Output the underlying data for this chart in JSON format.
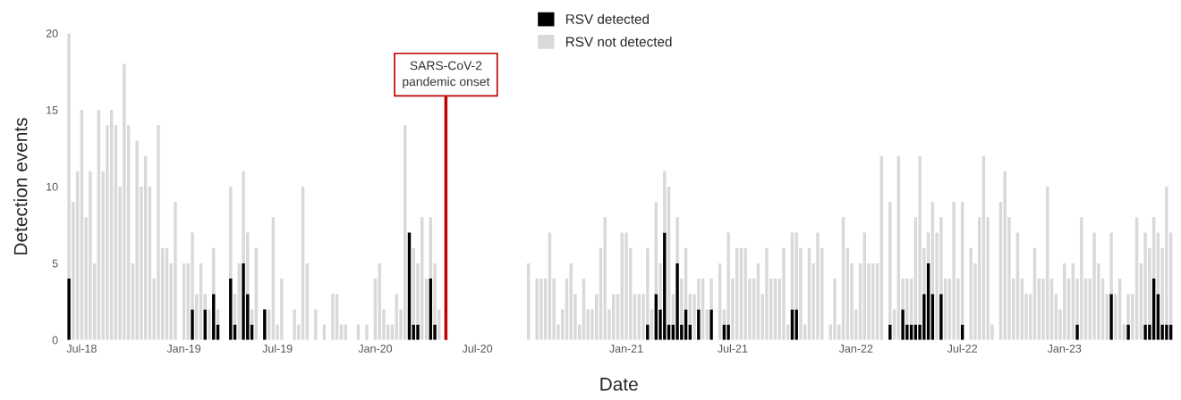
{
  "chart_data": {
    "type": "bar",
    "stacked": true,
    "xlabel": "Date",
    "ylabel": "Detection events",
    "ylim": [
      0,
      20
    ],
    "yticks": [
      0,
      5,
      10,
      15,
      20
    ],
    "grid": false,
    "legend": "top",
    "annotations": [
      "SARS-CoV-2\npandemic onset"
    ],
    "categories": [
      null,
      null,
      null,
      "Jul-18",
      null,
      null,
      null,
      null,
      null,
      null,
      null,
      null,
      null,
      null,
      null,
      null,
      null,
      null,
      null,
      null,
      null,
      null,
      null,
      null,
      null,
      null,
      null,
      "Jan-19",
      null,
      null,
      null,
      null,
      null,
      null,
      null,
      null,
      null,
      null,
      null,
      null,
      null,
      null,
      null,
      null,
      null,
      null,
      null,
      null,
      null,
      "Jul-19",
      null,
      null,
      null,
      null,
      null,
      null,
      null,
      null,
      null,
      null,
      null,
      null,
      null,
      null,
      null,
      null,
      null,
      null,
      null,
      null,
      null,
      null,
      "Jan-20",
      null,
      null,
      null,
      null,
      null,
      null,
      null,
      null,
      null,
      null,
      null,
      null,
      null,
      null,
      null,
      null,
      null,
      null,
      null,
      null,
      null,
      null,
      null,
      "Jul-20",
      null,
      null,
      null,
      null,
      null,
      null,
      null,
      null,
      null,
      null,
      null,
      null,
      null,
      null,
      null,
      null,
      null,
      null,
      null,
      null,
      null,
      null,
      null,
      null,
      null,
      null,
      null,
      null,
      null,
      null,
      null,
      null,
      null,
      null,
      "Jan-21",
      null,
      null,
      null,
      null,
      null,
      null,
      null,
      null,
      null,
      null,
      null,
      null,
      null,
      null,
      null,
      null,
      null,
      null,
      null,
      null,
      null,
      null,
      null,
      null,
      "Jul-21",
      null,
      null,
      null,
      null,
      null,
      null,
      null,
      null,
      null,
      null,
      null,
      null,
      null,
      null,
      null,
      null,
      null,
      null,
      null,
      null,
      null,
      null,
      null,
      null,
      null,
      null,
      null,
      null,
      "Jan-22",
      null,
      null,
      null,
      null,
      null,
      null,
      null,
      null,
      null,
      null,
      null,
      null,
      null,
      null,
      null,
      null,
      null,
      null,
      null,
      null,
      null,
      null,
      null,
      null,
      "Jul-22",
      null,
      null,
      null,
      null,
      null,
      null,
      null,
      null,
      null,
      null,
      null,
      null,
      null,
      null,
      null,
      null,
      null,
      null,
      null,
      null,
      null,
      null,
      null,
      "Jan-23",
      null,
      null,
      null,
      null,
      null,
      null,
      null,
      null,
      null,
      null,
      null,
      null,
      null,
      null,
      null,
      null,
      null,
      null,
      null,
      null,
      null,
      null,
      null,
      null,
      null
    ],
    "series": [
      {
        "name": "RSV detected",
        "color": "#000000",
        "values": [
          4,
          null,
          null,
          null,
          null,
          null,
          null,
          null,
          null,
          null,
          null,
          null,
          null,
          null,
          null,
          null,
          null,
          null,
          null,
          null,
          null,
          null,
          null,
          null,
          null,
          null,
          null,
          null,
          null,
          2,
          null,
          null,
          2,
          null,
          3,
          1,
          null,
          null,
          4,
          1,
          null,
          5,
          3,
          1,
          null,
          null,
          2,
          null,
          null,
          null,
          null,
          null,
          null,
          null,
          null,
          null,
          null,
          null,
          null,
          null,
          null,
          null,
          null,
          null,
          null,
          null,
          null,
          null,
          null,
          null,
          null,
          null,
          null,
          null,
          null,
          null,
          null,
          null,
          null,
          null,
          7,
          1,
          1,
          null,
          null,
          4,
          1,
          null,
          null,
          null,
          null,
          null,
          null,
          null,
          null,
          null,
          null,
          null,
          null,
          null,
          null,
          null,
          null,
          null,
          null,
          null,
          null,
          null,
          null,
          null,
          null,
          null,
          null,
          null,
          null,
          null,
          null,
          null,
          null,
          null,
          null,
          null,
          null,
          null,
          null,
          null,
          null,
          null,
          null,
          null,
          null,
          null,
          null,
          null,
          null,
          null,
          1,
          null,
          3,
          2,
          7,
          1,
          1,
          5,
          1,
          2,
          1,
          null,
          2,
          null,
          null,
          2,
          null,
          null,
          1,
          1,
          null,
          null,
          null,
          null,
          null,
          null,
          null,
          null,
          null,
          null,
          null,
          null,
          null,
          null,
          2,
          2,
          null,
          null,
          null,
          null,
          null,
          null,
          null,
          null,
          null,
          null,
          null,
          null,
          null,
          null,
          null,
          null,
          null,
          null,
          null,
          null,
          null,
          1,
          null,
          null,
          2,
          1,
          1,
          1,
          1,
          3,
          5,
          3,
          null,
          3,
          null,
          null,
          null,
          null,
          1,
          null,
          null,
          null,
          null,
          null,
          null,
          null,
          null,
          null,
          null,
          null,
          null,
          null,
          null,
          null,
          null,
          null,
          null,
          null,
          null,
          null,
          null,
          null,
          null,
          null,
          null,
          1,
          null,
          null,
          null,
          null,
          null,
          null,
          null,
          3,
          null,
          null,
          null,
          1,
          null,
          null,
          null,
          1,
          1,
          4,
          3,
          1,
          1,
          1
        ]
      },
      {
        "name": "RSV not detected",
        "color": "#d9d9d9",
        "values": [
          16,
          9,
          11,
          15,
          8,
          11,
          5,
          15,
          11,
          14,
          15,
          14,
          10,
          18,
          14,
          5,
          13,
          10,
          12,
          10,
          4,
          14,
          6,
          6,
          5,
          9,
          null,
          5,
          5,
          5,
          3,
          5,
          1,
          2,
          3,
          1,
          null,
          null,
          6,
          2,
          5,
          6,
          4,
          1,
          6,
          null,
          null,
          2,
          8,
          1,
          4,
          null,
          null,
          2,
          1,
          10,
          5,
          null,
          2,
          null,
          1,
          null,
          3,
          3,
          1,
          1,
          null,
          null,
          1,
          null,
          1,
          null,
          4,
          5,
          2,
          1,
          1,
          3,
          2,
          14,
          null,
          5,
          4,
          8,
          4,
          4,
          4,
          2,
          null,
          null,
          null,
          null,
          null,
          null,
          null,
          null,
          null,
          null,
          null,
          null,
          null,
          null,
          null,
          null,
          null,
          null,
          null,
          null,
          5,
          null,
          4,
          4,
          4,
          7,
          4,
          1,
          2,
          4,
          5,
          3,
          1,
          4,
          2,
          2,
          3,
          6,
          8,
          2,
          3,
          3,
          7,
          7,
          6,
          3,
          3,
          3,
          5,
          2,
          6,
          3,
          4,
          9,
          2,
          3,
          3,
          4,
          2,
          3,
          2,
          4,
          2,
          2,
          null,
          5,
          1,
          6,
          4,
          6,
          6,
          6,
          4,
          4,
          5,
          3,
          6,
          4,
          4,
          4,
          6,
          1,
          5,
          5,
          6,
          1,
          6,
          5,
          7,
          6,
          null,
          1,
          4,
          1,
          8,
          6,
          5,
          2,
          5,
          7,
          5,
          5,
          5,
          12,
          null,
          8,
          2,
          12,
          2,
          3,
          3,
          7,
          11,
          3,
          2,
          6,
          7,
          5,
          4,
          4,
          9,
          4,
          8,
          null,
          6,
          5,
          8,
          12,
          8,
          1,
          null,
          9,
          11,
          8,
          4,
          7,
          4,
          3,
          3,
          6,
          4,
          4,
          10,
          4,
          3,
          2,
          5,
          4,
          5,
          3,
          8,
          4,
          4,
          7,
          5,
          4,
          3,
          4,
          3,
          4,
          1,
          2,
          3,
          8,
          5,
          6,
          5,
          4,
          4,
          5,
          9,
          6
        ]
      }
    ]
  }
}
